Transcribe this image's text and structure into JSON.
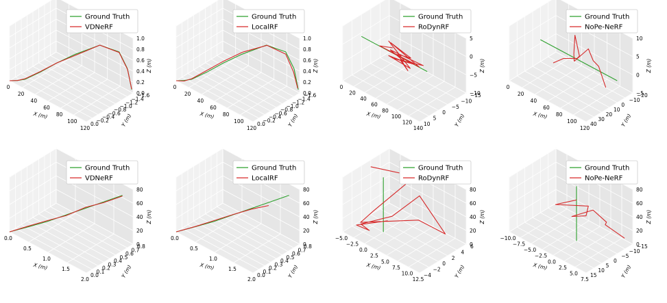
{
  "figure": {
    "gt_color": "#2ca02c",
    "est_color": "#d62728",
    "pane_color": "#ebebeb",
    "grid_color": "#ffffff"
  },
  "chart_data": [
    {
      "type": "line3d",
      "legend": [
        "Ground Truth",
        "VDNeRF"
      ],
      "legend_placement": "top-right",
      "xlabel": "X (m)",
      "ylabel": "Y (m)",
      "zlabel": "Z (m)",
      "xlim": [
        0,
        120
      ],
      "ylim": [
        -1.6,
        0.0
      ],
      "zlim": [
        0,
        1.0
      ],
      "xticks": [
        "0",
        "20",
        "40",
        "60",
        "80",
        "100",
        "120"
      ],
      "yticks": [
        "0.0",
        "−0.2",
        "−0.4",
        "−0.6",
        "−0.8",
        "−1.0",
        "−1.2",
        "−1.4",
        "−1.6"
      ],
      "zticks": [
        "0.0",
        "0.2",
        "0.4",
        "0.6",
        "0.8",
        "1.0"
      ],
      "series": [
        {
          "name": "Ground Truth",
          "x": [
            0,
            10,
            20,
            40,
            60,
            80,
            100,
            112,
            116,
            118
          ],
          "y": [
            0.0,
            -0.05,
            -0.1,
            -0.18,
            -0.3,
            -0.5,
            -0.9,
            -1.3,
            -1.5,
            -1.6
          ],
          "z": [
            0.0,
            0.05,
            0.12,
            0.35,
            0.6,
            0.82,
            0.98,
            0.8,
            0.45,
            0.05
          ]
        },
        {
          "name": "VDNeRF",
          "x": [
            0,
            10,
            20,
            40,
            60,
            80,
            100,
            112,
            116,
            118
          ],
          "y": [
            0.0,
            -0.05,
            -0.1,
            -0.18,
            -0.31,
            -0.5,
            -0.9,
            -1.3,
            -1.5,
            -1.6
          ],
          "z": [
            0.0,
            0.05,
            0.13,
            0.36,
            0.6,
            0.8,
            0.98,
            0.79,
            0.44,
            0.06
          ]
        }
      ]
    },
    {
      "type": "line3d",
      "legend": [
        "Ground Truth",
        "LocalRF"
      ],
      "legend_placement": "top-right",
      "xlabel": "X (m)",
      "ylabel": "Y (m)",
      "zlabel": "Z (m)",
      "xlim": [
        0,
        120
      ],
      "ylim": [
        -1.6,
        0.0
      ],
      "zlim": [
        0,
        1.0
      ],
      "xticks": [
        "0",
        "20",
        "40",
        "60",
        "80",
        "100",
        "120"
      ],
      "yticks": [
        "0.0",
        "−0.2",
        "−0.4",
        "−0.6",
        "−0.8",
        "−1.0",
        "−1.2",
        "−1.4",
        "−1.6"
      ],
      "zticks": [
        "0.0",
        "0.2",
        "0.4",
        "0.6",
        "0.8",
        "1.0"
      ],
      "series": [
        {
          "name": "Ground Truth",
          "x": [
            0,
            10,
            20,
            40,
            60,
            80,
            100,
            112,
            116,
            118
          ],
          "y": [
            0.0,
            -0.05,
            -0.1,
            -0.18,
            -0.3,
            -0.5,
            -0.9,
            -1.3,
            -1.5,
            -1.6
          ],
          "z": [
            0.0,
            0.05,
            0.12,
            0.35,
            0.6,
            0.82,
            0.98,
            0.8,
            0.45,
            0.05
          ]
        },
        {
          "name": "LocalRF",
          "x": [
            0,
            10,
            20,
            40,
            60,
            80,
            100,
            112,
            116,
            118
          ],
          "y": [
            0.0,
            -0.05,
            -0.1,
            -0.19,
            -0.32,
            -0.52,
            -0.92,
            -1.3,
            -1.48,
            -1.58
          ],
          "z": [
            0.0,
            0.04,
            0.13,
            0.38,
            0.63,
            0.85,
            0.97,
            0.76,
            0.4,
            0.08
          ]
        }
      ]
    },
    {
      "type": "line3d",
      "legend": [
        "Ground Truth",
        "RoDynRF"
      ],
      "legend_placement": "top-right",
      "xlabel": "X (m)",
      "ylabel": "Y (m)",
      "zlabel": "Z (m)",
      "xlim": [
        0,
        140
      ],
      "ylim": [
        -15,
        10
      ],
      "zlim": [
        -12,
        8
      ],
      "xticks": [
        "0",
        "20",
        "40",
        "60",
        "80",
        "100",
        "120",
        "140"
      ],
      "yticks": [
        "10",
        "5",
        "0",
        "−5",
        "−10",
        "−15"
      ],
      "zticks": [
        "−10",
        "−5",
        "0",
        "5"
      ],
      "series": [
        {
          "name": "Ground Truth",
          "x": [
            0,
            20,
            40,
            60,
            80,
            100,
            120
          ],
          "y": [
            0,
            0,
            0,
            0,
            0,
            0,
            0
          ],
          "z": [
            0,
            0,
            0,
            0,
            0,
            0,
            0
          ]
        },
        {
          "name": "RoDynRF",
          "x": [
            40,
            50,
            45,
            60,
            55,
            70,
            65,
            80,
            72,
            85,
            78,
            90,
            70,
            60,
            75,
            65,
            85,
            80,
            95
          ],
          "y": [
            -5,
            5,
            -8,
            3,
            -10,
            6,
            -4,
            8,
            -12,
            4,
            -2,
            7,
            -6,
            2,
            -9,
            5,
            -3,
            6,
            0
          ],
          "z": [
            -2,
            4,
            -6,
            6,
            -10,
            3,
            -4,
            7,
            -8,
            2,
            -5,
            6,
            -3,
            5,
            -7,
            4,
            -2,
            3,
            0
          ]
        }
      ]
    },
    {
      "type": "line3d",
      "legend": [
        "Ground Truth",
        "NoPe-NeRF"
      ],
      "legend_placement": "top-right",
      "xlabel": "X (m)",
      "ylabel": "Y (m)",
      "zlabel": "Z (m)",
      "xlim": [
        0,
        120
      ],
      "ylim": [
        -20,
        40
      ],
      "zlim": [
        -8,
        12
      ],
      "xticks": [
        "0",
        "20",
        "40",
        "60",
        "80",
        "100",
        "120"
      ],
      "yticks": [
        "40",
        "30",
        "20",
        "10",
        "0",
        "−10",
        "−20"
      ],
      "zticks": [
        "−5",
        "0",
        "5",
        "10"
      ],
      "series": [
        {
          "name": "Ground Truth",
          "x": [
            0,
            20,
            40,
            60,
            80,
            100,
            120
          ],
          "y": [
            0,
            0,
            0,
            0,
            0,
            0,
            0
          ],
          "z": [
            0,
            0,
            0,
            0,
            0,
            0,
            0
          ]
        },
        {
          "name": "NoPe-NeRF",
          "x": [
            20,
            30,
            45,
            55,
            60,
            62,
            65,
            70,
            75,
            80,
            85,
            90
          ],
          "y": [
            0,
            -5,
            -10,
            -5,
            5,
            8,
            10,
            5,
            0,
            -2,
            -5,
            -10
          ],
          "z": [
            -6,
            -4,
            -3,
            0,
            10,
            4,
            2,
            4,
            6,
            2,
            0,
            -8
          ]
        }
      ]
    },
    {
      "type": "line3d",
      "legend": [
        "Ground Truth",
        "VDNeRF"
      ],
      "legend_placement": "top-right",
      "xlabel": "X (m)",
      "ylabel": "Y (m)",
      "zlabel": "Z (m)",
      "xlim": [
        0,
        2.0
      ],
      "ylim": [
        0,
        0.8
      ],
      "zlim": [
        0,
        80
      ],
      "xticks": [
        "0.0",
        "0.5",
        "1.0",
        "1.5",
        "2.0"
      ],
      "yticks": [
        "0.0",
        "0.1",
        "0.2",
        "0.3",
        "0.4",
        "0.5",
        "0.6",
        "0.7",
        "0.8"
      ],
      "zticks": [
        "0",
        "20",
        "40",
        "60",
        "80"
      ],
      "series": [
        {
          "name": "Ground Truth",
          "x": [
            0.0,
            0.3,
            0.6,
            0.9,
            1.2,
            1.5,
            1.8
          ],
          "y": [
            0.0,
            0.12,
            0.25,
            0.38,
            0.5,
            0.62,
            0.75
          ],
          "z": [
            0,
            10,
            20,
            32,
            44,
            56,
            68
          ]
        },
        {
          "name": "VDNeRF",
          "x": [
            0.0,
            0.3,
            0.6,
            0.9,
            1.2,
            1.5,
            1.8
          ],
          "y": [
            0.0,
            0.12,
            0.26,
            0.38,
            0.51,
            0.62,
            0.75
          ],
          "z": [
            0,
            11,
            21,
            31,
            45,
            55,
            67
          ]
        }
      ]
    },
    {
      "type": "line3d",
      "legend": [
        "Ground Truth",
        "LocalRF"
      ],
      "legend_placement": "top-right",
      "xlabel": "X (m)",
      "ylabel": "Y (m)",
      "zlabel": "Z (m)",
      "xlim": [
        0,
        2.0
      ],
      "ylim": [
        0,
        0.8
      ],
      "zlim": [
        0,
        80
      ],
      "xticks": [
        "0.0",
        "0.5",
        "1.0",
        "1.5",
        "2.0"
      ],
      "yticks": [
        "0.0",
        "0.1",
        "0.2",
        "0.3",
        "0.4",
        "0.5",
        "0.6",
        "0.7",
        "0.8"
      ],
      "zticks": [
        "0",
        "20",
        "40",
        "60",
        "80"
      ],
      "series": [
        {
          "name": "Ground Truth",
          "x": [
            0.0,
            0.3,
            0.6,
            0.9,
            1.2,
            1.5,
            1.8
          ],
          "y": [
            0.0,
            0.12,
            0.25,
            0.38,
            0.5,
            0.62,
            0.75
          ],
          "z": [
            0,
            10,
            20,
            32,
            44,
            56,
            68
          ]
        },
        {
          "name": "LocalRF",
          "x": [
            0.0,
            0.3,
            0.6,
            0.9,
            1.2,
            1.5
          ],
          "y": [
            0.0,
            0.13,
            0.26,
            0.39,
            0.5,
            0.6
          ],
          "z": [
            0,
            10,
            21,
            32,
            43,
            52
          ]
        }
      ]
    },
    {
      "type": "line3d",
      "legend": [
        "Ground Truth",
        "RoDynRF"
      ],
      "legend_placement": "top-right",
      "xlabel": "X (m)",
      "ylabel": "Y (m)",
      "zlabel": "Z (m)",
      "xlim": [
        -5,
        12.5
      ],
      "ylim": [
        -4,
        6
      ],
      "zlim": [
        0,
        80
      ],
      "xticks": [
        "−5.0",
        "−2.5",
        "0.0",
        "2.5",
        "5.0",
        "7.5",
        "10.0",
        "12.5"
      ],
      "yticks": [
        "−4",
        "−2",
        "0",
        "2",
        "4",
        "6"
      ],
      "zticks": [
        "0",
        "20",
        "40",
        "60",
        "80"
      ],
      "series": [
        {
          "name": "Ground Truth",
          "x": [
            0,
            0,
            0,
            0,
            0
          ],
          "y": [
            0,
            0,
            0,
            0,
            0
          ],
          "z": [
            0,
            20,
            40,
            60,
            80
          ]
        },
        {
          "name": "RoDynRF",
          "x": [
            -5,
            3,
            0,
            -2,
            8,
            12,
            4,
            2,
            -3,
            0,
            -4,
            1
          ],
          "y": [
            2,
            4,
            -2,
            -3,
            0,
            2,
            4,
            0,
            -2,
            -3,
            -2,
            0
          ],
          "z": [
            70,
            75,
            40,
            20,
            45,
            30,
            50,
            30,
            10,
            15,
            5,
            20
          ]
        }
      ]
    },
    {
      "type": "line3d",
      "legend": [
        "Ground Truth",
        "NoPe-NeRF"
      ],
      "legend_placement": "top-right",
      "xlabel": "X (m)",
      "ylabel": "Y (m)",
      "zlabel": "Z (m)",
      "xlim": [
        -10,
        7.5
      ],
      "ylim": [
        -15,
        15
      ],
      "zlim": [
        0,
        80
      ],
      "xticks": [
        "−10.0",
        "−7.5",
        "−5.0",
        "−2.5",
        "0.0",
        "2.5",
        "5.0",
        "7.5"
      ],
      "yticks": [
        "15",
        "10",
        "5",
        "0",
        "−5",
        "−10",
        "−15"
      ],
      "zticks": [
        "0",
        "20",
        "40",
        "60",
        "80"
      ],
      "series": [
        {
          "name": "Ground Truth",
          "x": [
            0,
            0,
            0,
            0,
            0
          ],
          "y": [
            0,
            0,
            0,
            0,
            0
          ],
          "z": [
            0,
            20,
            40,
            60,
            80
          ]
        },
        {
          "name": "NoPe-NeRF",
          "x": [
            0,
            -3,
            2,
            5,
            0,
            2,
            4,
            3,
            6
          ],
          "y": [
            0,
            5,
            -2,
            8,
            3,
            -5,
            -8,
            -10,
            -14
          ],
          "z": [
            60,
            50,
            55,
            65,
            40,
            45,
            30,
            20,
            5
          ]
        }
      ]
    }
  ]
}
